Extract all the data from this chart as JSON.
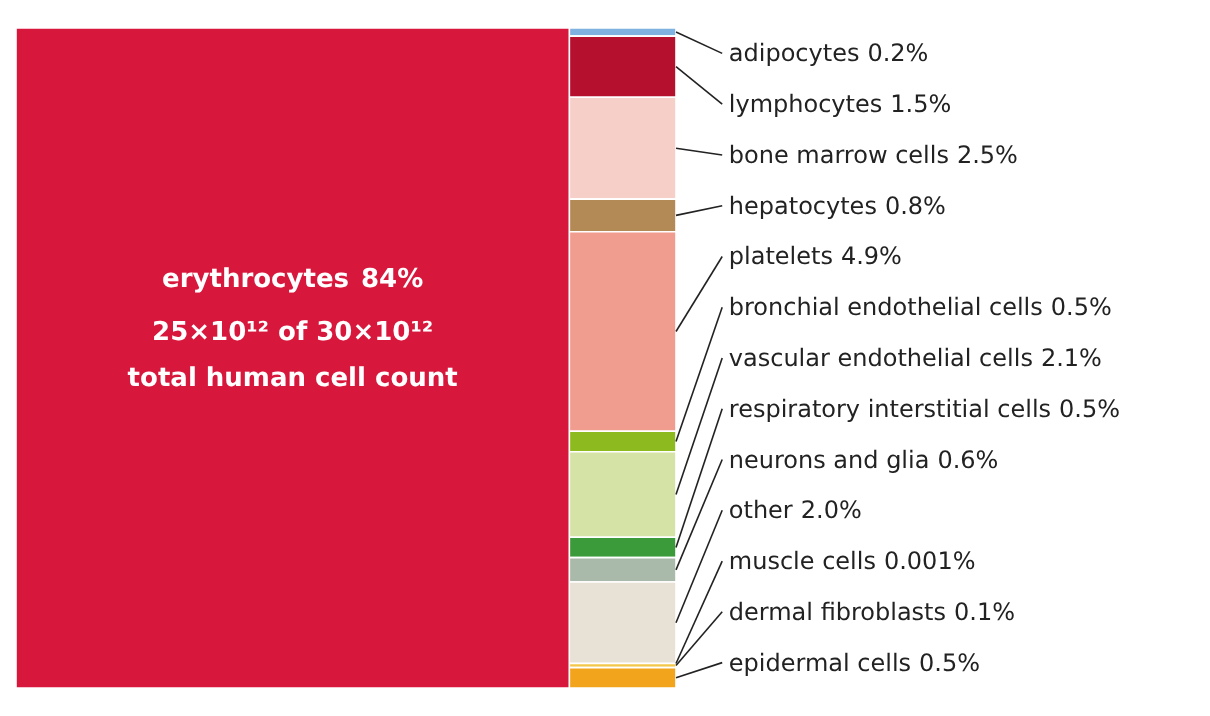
{
  "chart_data": {
    "type": "other",
    "categories": [
      "adipocytes",
      "lymphocytes",
      "bone marrow cells",
      "hepatocytes",
      "platelets",
      "bronchial endothelial cells",
      "vascular endothelial cells",
      "respiratory interstitial cells",
      "neurons and glia",
      "other",
      "muscle cells",
      "dermal fibroblasts",
      "epidermal cells",
      "erythrocytes"
    ],
    "values": [
      0.2,
      1.5,
      2.5,
      0.8,
      4.9,
      0.5,
      2.1,
      0.5,
      0.6,
      2.0,
      0.001,
      0.1,
      0.5,
      84
    ],
    "value_labels": [
      "0.2%",
      "1.5%",
      "2.5%",
      "0.8%",
      "4.9%",
      "0.5%",
      "2.1%",
      "0.5%",
      "0.6%",
      "2.0%",
      "0.001%",
      "0.1%",
      "0.5%",
      "84%"
    ],
    "colors": [
      "#7fb2e0",
      "#b5102e",
      "#f6cfc8",
      "#b38a55",
      "#f09c8f",
      "#8dbb1f",
      "#d5e4a6",
      "#3b9b3a",
      "#a9b9aa",
      "#e7e1d6",
      "#2b4d8e",
      "#f3c84a",
      "#f2a51c",
      "#d8173c"
    ],
    "annotations": [
      "25×10¹² of 30×10¹²",
      "total human cell count"
    ]
  }
}
